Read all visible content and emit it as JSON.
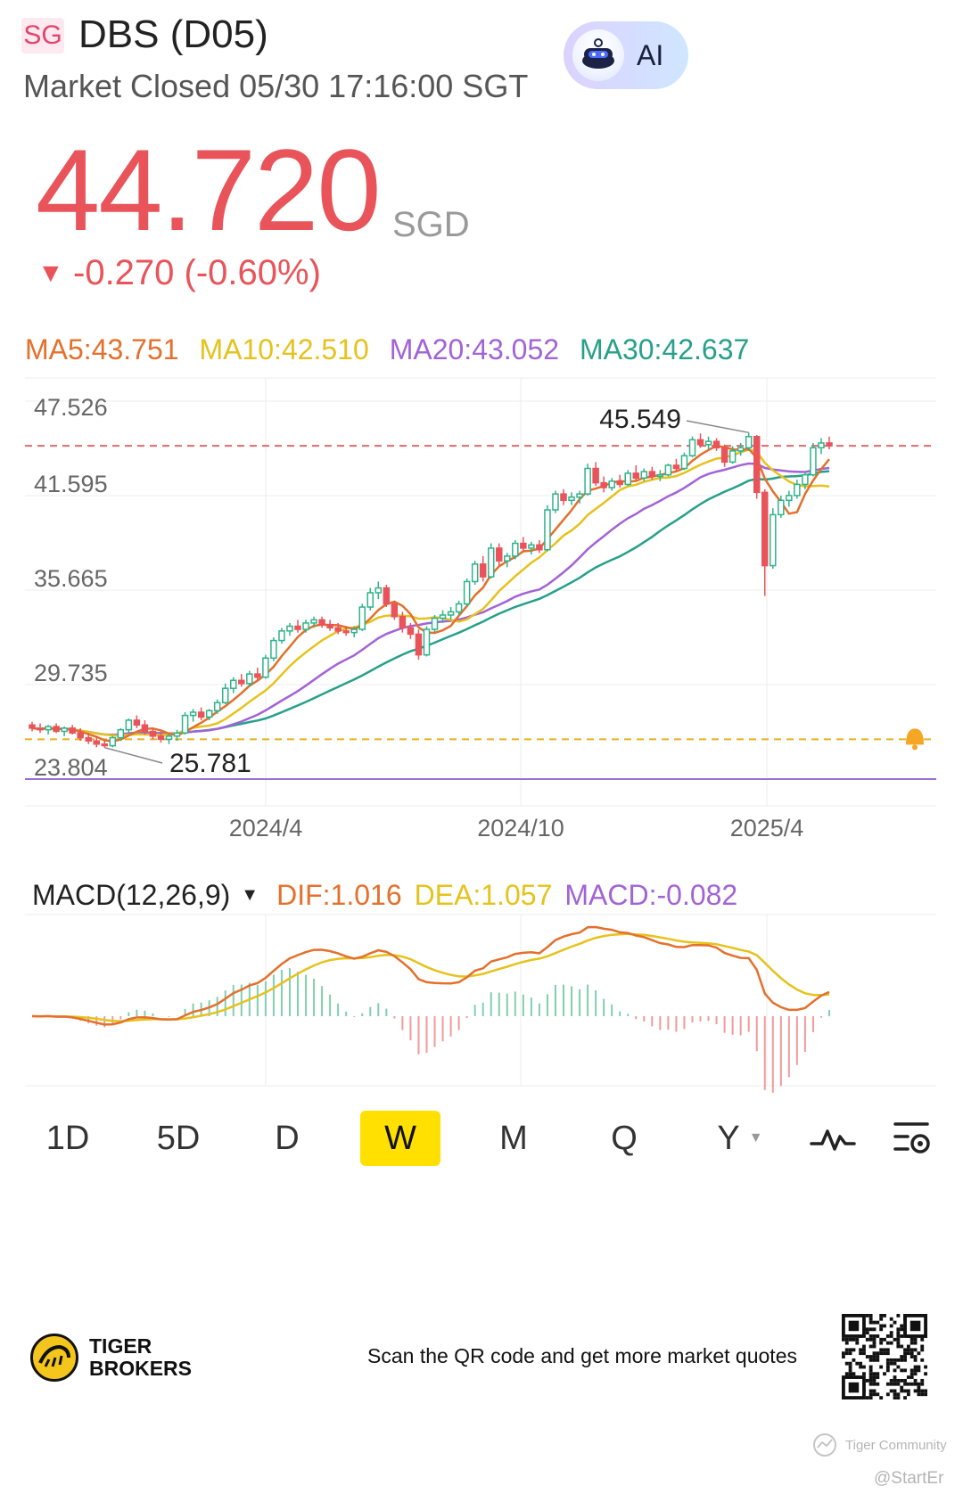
{
  "header": {
    "market": "SG",
    "title": "DBS (D05)",
    "status": "Market Closed 05/30 17:16:00 SGT",
    "ai_label": "AI"
  },
  "quote": {
    "price": "44.720",
    "currency": "SGD",
    "change_arrow": "▼",
    "change": "-0.270 (-0.60%)"
  },
  "ma_legend": {
    "ma5": "MA5:43.751",
    "ma10": "MA10:42.510",
    "ma20": "MA20:43.052",
    "ma30": "MA30:42.637"
  },
  "colors": {
    "up": "#2fb38a",
    "down": "#e8545a",
    "ma5": "#e4702c",
    "ma10": "#e6c21c",
    "ma20": "#a263d6",
    "ma30": "#26a08a",
    "grid": "#ececec",
    "axis_text": "#666666"
  },
  "chart_data": {
    "type": "candlestick",
    "interval": "W",
    "y_ticks": [
      "47.526",
      "41.595",
      "35.665",
      "29.735",
      "23.804"
    ],
    "y_tick_values": [
      47.526,
      41.595,
      35.665,
      29.735,
      23.804
    ],
    "x_ticks": [
      "2024/4",
      "2024/10",
      "2025/4"
    ],
    "high_label": "45.549",
    "low_label": "25.781",
    "ref_lines": {
      "last_close_dashed": 44.72,
      "alert_dashed": 26.3,
      "solid": 23.804
    },
    "ohlc": [
      [
        27.2,
        27.4,
        26.8,
        27.0
      ],
      [
        27.0,
        27.3,
        26.7,
        26.9
      ],
      [
        26.9,
        27.2,
        26.6,
        27.1
      ],
      [
        27.1,
        27.3,
        26.7,
        26.8
      ],
      [
        26.8,
        27.1,
        26.5,
        27.0
      ],
      [
        27.0,
        27.2,
        26.6,
        26.7
      ],
      [
        26.7,
        27.0,
        26.2,
        26.4
      ],
      [
        26.4,
        26.7,
        26.0,
        26.2
      ],
      [
        26.2,
        26.5,
        25.8,
        26.0
      ],
      [
        26.0,
        26.2,
        25.78,
        25.9
      ],
      [
        25.9,
        26.5,
        25.8,
        26.4
      ],
      [
        26.4,
        27.0,
        26.2,
        26.9
      ],
      [
        26.9,
        27.6,
        26.7,
        27.5
      ],
      [
        27.5,
        27.8,
        27.0,
        27.2
      ],
      [
        27.2,
        27.5,
        26.6,
        26.8
      ],
      [
        26.8,
        27.0,
        26.3,
        26.5
      ],
      [
        26.5,
        26.8,
        26.1,
        26.3
      ],
      [
        26.3,
        26.6,
        26.0,
        26.5
      ],
      [
        26.5,
        26.9,
        26.2,
        26.7
      ],
      [
        26.7,
        28.0,
        26.6,
        27.8
      ],
      [
        27.8,
        28.2,
        27.4,
        28.0
      ],
      [
        28.0,
        28.3,
        27.5,
        27.7
      ],
      [
        27.7,
        28.2,
        27.5,
        28.1
      ],
      [
        28.1,
        28.8,
        27.9,
        28.6
      ],
      [
        28.6,
        29.8,
        28.5,
        29.5
      ],
      [
        29.5,
        30.2,
        29.2,
        30.0
      ],
      [
        30.0,
        30.4,
        29.6,
        29.8
      ],
      [
        29.8,
        30.6,
        29.6,
        30.4
      ],
      [
        30.4,
        30.8,
        30.0,
        30.2
      ],
      [
        30.2,
        31.6,
        30.1,
        31.4
      ],
      [
        31.4,
        32.7,
        31.2,
        32.5
      ],
      [
        32.5,
        33.3,
        32.3,
        33.1
      ],
      [
        33.1,
        33.6,
        32.8,
        33.4
      ],
      [
        33.4,
        33.8,
        33.0,
        33.2
      ],
      [
        33.2,
        33.8,
        33.0,
        33.6
      ],
      [
        33.6,
        34.0,
        33.3,
        33.8
      ],
      [
        33.8,
        34.0,
        33.3,
        33.5
      ],
      [
        33.5,
        33.8,
        33.1,
        33.3
      ],
      [
        33.3,
        33.6,
        32.9,
        33.1
      ],
      [
        33.1,
        33.4,
        32.8,
        33.0
      ],
      [
        33.0,
        33.4,
        32.7,
        33.2
      ],
      [
        33.2,
        34.8,
        33.1,
        34.6
      ],
      [
        34.6,
        35.8,
        34.4,
        35.5
      ],
      [
        35.5,
        36.2,
        35.1,
        35.8
      ],
      [
        35.8,
        36.0,
        34.6,
        34.8
      ],
      [
        34.8,
        35.0,
        33.8,
        34.0
      ],
      [
        34.0,
        34.3,
        33.0,
        33.3
      ],
      [
        33.3,
        33.6,
        32.6,
        32.9
      ],
      [
        32.9,
        33.2,
        31.3,
        31.6
      ],
      [
        31.6,
        33.4,
        31.5,
        33.2
      ],
      [
        33.2,
        34.1,
        33.0,
        33.9
      ],
      [
        33.9,
        34.4,
        33.6,
        34.1
      ],
      [
        34.1,
        34.6,
        33.8,
        34.3
      ],
      [
        34.3,
        35.0,
        34.1,
        34.8
      ],
      [
        34.8,
        36.4,
        34.6,
        36.2
      ],
      [
        36.2,
        37.5,
        36.0,
        37.3
      ],
      [
        37.3,
        37.8,
        36.2,
        36.5
      ],
      [
        36.5,
        38.6,
        36.4,
        38.3
      ],
      [
        38.3,
        38.6,
        37.2,
        37.5
      ],
      [
        37.5,
        38.0,
        37.1,
        37.8
      ],
      [
        37.8,
        38.8,
        37.6,
        38.6
      ],
      [
        38.6,
        39.0,
        38.1,
        38.3
      ],
      [
        38.3,
        38.7,
        37.9,
        38.5
      ],
      [
        38.5,
        38.8,
        38.0,
        38.2
      ],
      [
        38.2,
        41.0,
        38.1,
        40.7
      ],
      [
        40.7,
        41.9,
        40.5,
        41.7
      ],
      [
        41.7,
        42.0,
        41.0,
        41.3
      ],
      [
        41.3,
        41.8,
        41.0,
        41.5
      ],
      [
        41.5,
        41.9,
        41.1,
        41.7
      ],
      [
        41.7,
        43.6,
        41.6,
        43.3
      ],
      [
        43.3,
        43.7,
        42.2,
        42.4
      ],
      [
        42.4,
        42.8,
        41.8,
        42.1
      ],
      [
        42.1,
        42.7,
        41.9,
        42.5
      ],
      [
        42.5,
        42.9,
        42.1,
        42.3
      ],
      [
        42.3,
        43.2,
        42.2,
        43.0
      ],
      [
        43.0,
        43.5,
        42.5,
        42.7
      ],
      [
        42.7,
        43.3,
        42.5,
        43.1
      ],
      [
        43.1,
        43.4,
        42.6,
        42.8
      ],
      [
        42.8,
        43.2,
        42.5,
        42.9
      ],
      [
        42.9,
        43.6,
        42.8,
        43.5
      ],
      [
        43.5,
        43.9,
        43.1,
        43.3
      ],
      [
        43.3,
        44.3,
        43.2,
        44.1
      ],
      [
        44.1,
        45.3,
        44.0,
        45.1
      ],
      [
        45.1,
        45.5,
        44.6,
        44.8
      ],
      [
        44.8,
        45.3,
        44.5,
        45.0
      ],
      [
        45.0,
        45.2,
        44.4,
        44.6
      ],
      [
        44.6,
        44.8,
        43.4,
        43.7
      ],
      [
        43.7,
        44.7,
        43.6,
        44.4
      ],
      [
        44.4,
        44.9,
        44.1,
        44.6
      ],
      [
        44.6,
        45.55,
        44.4,
        45.3
      ],
      [
        45.3,
        45.4,
        41.4,
        41.8
      ],
      [
        41.8,
        42.0,
        35.3,
        37.2
      ],
      [
        37.2,
        40.8,
        37.0,
        40.4
      ],
      [
        40.4,
        41.6,
        40.2,
        41.3
      ],
      [
        41.3,
        41.9,
        40.9,
        41.6
      ],
      [
        41.6,
        42.6,
        41.4,
        42.3
      ],
      [
        42.3,
        43.1,
        42.0,
        42.9
      ],
      [
        42.9,
        44.9,
        42.8,
        44.6
      ],
      [
        44.6,
        45.2,
        44.2,
        44.9
      ],
      [
        44.9,
        45.3,
        44.5,
        44.72
      ]
    ]
  },
  "macd_legend": {
    "name": "MACD(12,26,9)",
    "caret": "▼",
    "dif": "DIF:1.016",
    "dea": "DEA:1.057",
    "macd": "MACD:-0.082"
  },
  "tabs": [
    {
      "label": "1D",
      "active": false
    },
    {
      "label": "5D",
      "active": false
    },
    {
      "label": "D",
      "active": false
    },
    {
      "label": "W",
      "active": true
    },
    {
      "label": "M",
      "active": false
    },
    {
      "label": "Q",
      "active": false
    },
    {
      "label": "Y",
      "active": false
    }
  ],
  "tab_icons": [
    "chart-indicator-icon",
    "chart-settings-icon"
  ],
  "footer": {
    "brand_line1": "TIGER",
    "brand_line2": "BROKERS",
    "cta": "Scan the QR code and get more market quotes",
    "community": "Tiger Community",
    "watermark": "@StartEr"
  }
}
